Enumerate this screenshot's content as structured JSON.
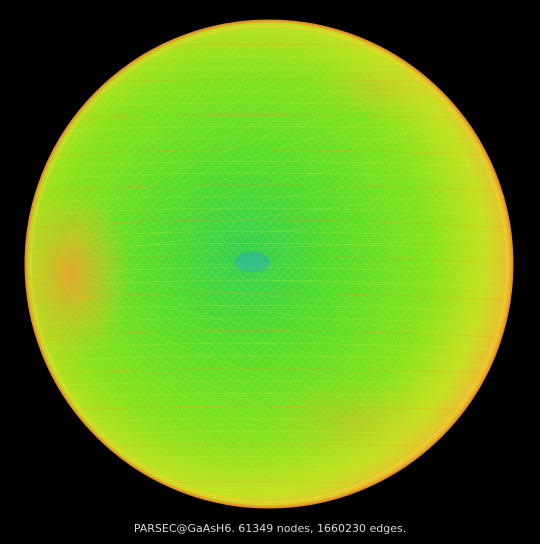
{
  "caption": "PARSEC@GaAsH6. 61349 nodes, 1660230 edges.",
  "graph": {
    "shape": "sphere",
    "background_color": "#000000",
    "center_color": "#33d04a",
    "body_color": "#7ee21a",
    "rim_color": "#f0c828",
    "edge_color": "#ff7a1a"
  }
}
